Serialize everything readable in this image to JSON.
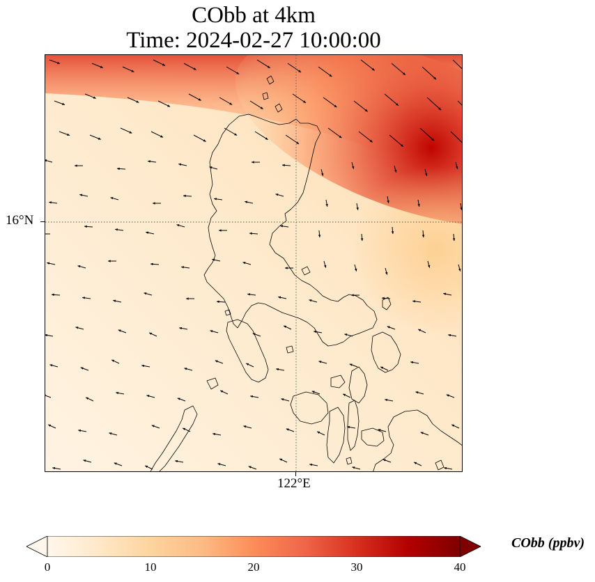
{
  "title": {
    "line1": "CObb at 4km",
    "line2": "Time: 2024-02-27 10:00:00"
  },
  "map": {
    "latitude_label": "16°N",
    "longitude_label": "122°E",
    "gridline_style": "dotted",
    "coastline_color": "#000000",
    "wind_vector_color": "#000000"
  },
  "colorbar": {
    "label": "CObb (ppbv)",
    "ticks": [
      "0",
      "10",
      "20",
      "30",
      "40"
    ],
    "range": [
      0,
      40
    ],
    "colormap": [
      "#fff7ec",
      "#fee8c8",
      "#fdd49e",
      "#fdbb84",
      "#fc8d59",
      "#ef6548",
      "#d7301f",
      "#b30000",
      "#7f0000"
    ],
    "extend": "both"
  }
}
